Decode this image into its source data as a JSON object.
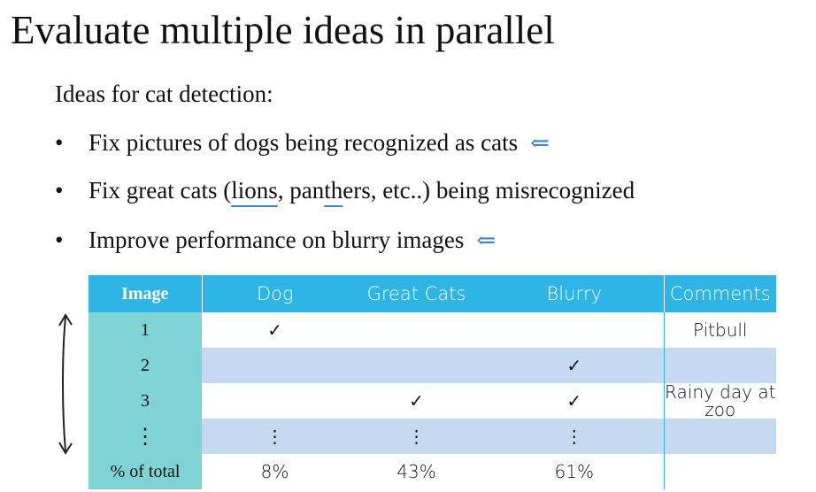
{
  "slide": {
    "title": "Evaluate multiple ideas in parallel",
    "intro": "Ideas for cat detection:",
    "bullets": [
      {
        "text": "Fix pictures of dogs being recognized as cats"
      },
      {
        "text_a": "Fix great cats (",
        "text_b": "lions",
        "text_c": ", pan",
        "text_d": "th",
        "text_e": "ers, etc..) being misrecognized"
      },
      {
        "text": "Improve performance on blurry images"
      }
    ],
    "bullet_symbol": "•",
    "arrow_symbol": "⇐"
  },
  "table": {
    "headers": [
      "Image",
      "Dog",
      "Great Cats",
      "Blurry",
      "Comments"
    ],
    "rows": [
      {
        "image": "1",
        "dog": "✓",
        "great_cats": "",
        "blurry": "",
        "comments": "Pitbull"
      },
      {
        "image": "2",
        "dog": "",
        "great_cats": "",
        "blurry": "✓",
        "comments": ""
      },
      {
        "image": "3",
        "dog": "",
        "great_cats": "✓",
        "blurry": "✓",
        "comments": "Rainy day at zoo"
      },
      {
        "image": "⋮",
        "dog": "⋮",
        "great_cats": "⋮",
        "blurry": "⋮",
        "comments": ""
      }
    ],
    "total": {
      "label": "% of total",
      "dog": "8%",
      "great_cats": "43%",
      "blurry": "61%",
      "comments": ""
    }
  },
  "colors": {
    "header_bg": "#2fb4e6",
    "index_col_bg": "#7fd3d4",
    "alt_row_bg": "#c5daf0",
    "arrow": "#3f7fd6"
  }
}
